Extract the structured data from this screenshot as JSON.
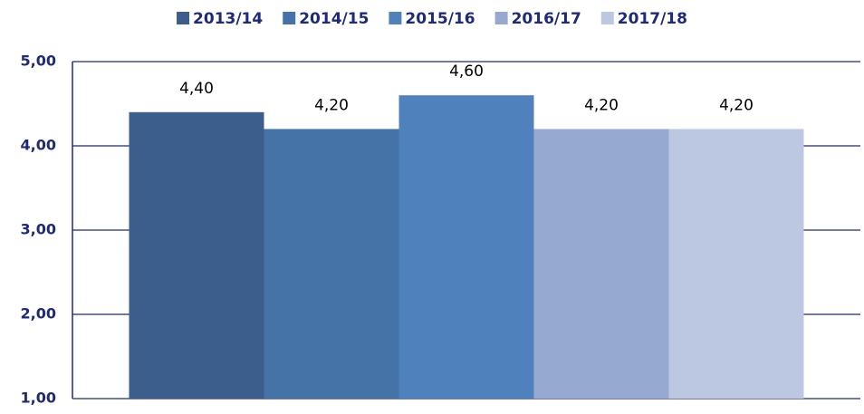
{
  "chart_data": {
    "type": "bar",
    "categories": [
      null
    ],
    "series": [
      {
        "name": "2013/14",
        "color": "#3b5e8c",
        "values": [
          4.4
        ],
        "value_labels": [
          "4,40"
        ]
      },
      {
        "name": "2014/15",
        "color": "#4573a7",
        "values": [
          4.2
        ],
        "value_labels": [
          "4,20"
        ]
      },
      {
        "name": "2015/16",
        "color": "#4f81bd",
        "values": [
          4.6
        ],
        "value_labels": [
          "4,60"
        ]
      },
      {
        "name": "2016/17",
        "color": "#95a9d1",
        "values": [
          4.2
        ],
        "value_labels": [
          "4,20"
        ]
      },
      {
        "name": "2017/18",
        "color": "#bcc8e1",
        "values": [
          4.2
        ],
        "value_labels": [
          "4,20"
        ]
      }
    ],
    "ylim": [
      1,
      5
    ],
    "yticks": [
      {
        "value": 1,
        "label": "1,00"
      },
      {
        "value": 2,
        "label": "2,00"
      },
      {
        "value": 3,
        "label": "3,00"
      },
      {
        "value": 4,
        "label": "4,00"
      },
      {
        "value": 5,
        "label": "5,00"
      }
    ],
    "grid": true,
    "legend": "top"
  }
}
